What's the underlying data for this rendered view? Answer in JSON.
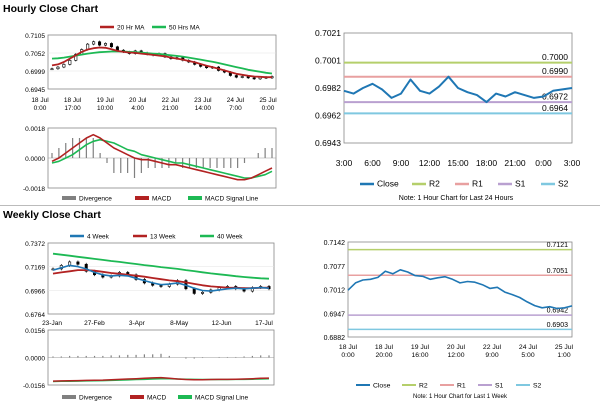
{
  "titles": {
    "hourly": "Hourly Close Chart",
    "weekly": "Weekly Close Chart"
  },
  "colors": {
    "candle": "#000000",
    "ma20": "#b22222",
    "ma50": "#1db954",
    "divergence": "#808080",
    "macd": "#b22222",
    "signal": "#1db954",
    "close": "#1f77b4",
    "r2": "#b5cf6b",
    "r1": "#e8a0a0",
    "s1": "#b9a0d0",
    "s2": "#7fc8e0",
    "w4": "#1f77b4",
    "w13": "#b22222",
    "w40": "#1db954"
  },
  "chart_data": [
    {
      "id": "hourly-price",
      "type": "line",
      "legend": [
        "20 Hr MA",
        "50 Hrs MA"
      ],
      "ylim": [
        0.6945,
        0.7105
      ],
      "yticks": [
        "0.7105",
        "0.7052",
        "0.6999",
        "0.6945"
      ],
      "xticks": [
        [
          "18 Jul",
          "0:00"
        ],
        [
          "18 Jul",
          "17:00"
        ],
        [
          "19 Jul",
          "10:00"
        ],
        [
          "20 Jul",
          "4:00"
        ],
        [
          "22 Jul",
          "21:00"
        ],
        [
          "23 Jul",
          "14:00"
        ],
        [
          "24 Jul",
          "7:00"
        ],
        [
          "25 Jul",
          "0:00"
        ]
      ],
      "close": [
        0.7005,
        0.701,
        0.7018,
        0.703,
        0.7048,
        0.7062,
        0.7078,
        0.7085,
        0.7075,
        0.708,
        0.707,
        0.706,
        0.7055,
        0.705,
        0.7058,
        0.7052,
        0.7048,
        0.7045,
        0.705,
        0.704,
        0.7035,
        0.7038,
        0.703,
        0.7025,
        0.7018,
        0.7012,
        0.7008,
        0.701,
        0.7,
        0.6995,
        0.6985,
        0.698,
        0.6982,
        0.6978,
        0.6975,
        0.698,
        0.6978,
        0.6982
      ],
      "ma20": [
        0.7015,
        0.7018,
        0.7025,
        0.7035,
        0.7045,
        0.7055,
        0.7062,
        0.7066,
        0.7068,
        0.7067,
        0.7063,
        0.7058,
        0.7055,
        0.7053,
        0.7052,
        0.705,
        0.7048,
        0.7046,
        0.7044,
        0.7042,
        0.7038,
        0.7035,
        0.7032,
        0.7028,
        0.7024,
        0.7019,
        0.7014,
        0.701,
        0.7005,
        0.7,
        0.6995,
        0.699,
        0.6987,
        0.6984,
        0.6982,
        0.6981,
        0.698,
        0.698
      ],
      "ma50": [
        0.7035,
        0.7036,
        0.7038,
        0.7041,
        0.7044,
        0.7047,
        0.705,
        0.7052,
        0.7054,
        0.7055,
        0.7056,
        0.7056,
        0.7056,
        0.7055,
        0.7054,
        0.7053,
        0.7051,
        0.705,
        0.7049,
        0.7047,
        0.7045,
        0.7043,
        0.7041,
        0.7038,
        0.7035,
        0.7032,
        0.7029,
        0.7026,
        0.7022,
        0.7018,
        0.7014,
        0.701,
        0.7006,
        0.7002,
        0.6999,
        0.6996,
        0.6993,
        0.6991
      ]
    },
    {
      "id": "hourly-macd",
      "type": "bar",
      "legend": [
        "Divergence",
        "MACD",
        "MACD Signal Line"
      ],
      "ylim": [
        -0.0018,
        0.0018
      ],
      "yticks": [
        "0.0018",
        "0.0000",
        "-0.0018"
      ],
      "macd": [
        -0.0002,
        0.0,
        0.0003,
        0.0006,
        0.0009,
        0.0012,
        0.0014,
        0.0012,
        0.0009,
        0.0006,
        0.0004,
        0.0002,
        0.0,
        -0.0001,
        -0.0001,
        -0.0002,
        -0.0003,
        -0.0004,
        -0.0004,
        -0.0005,
        -0.0006,
        -0.0007,
        -0.0008,
        -0.0009,
        -0.001,
        -0.0011,
        -0.0012,
        -0.0013,
        -0.0013,
        -0.0012,
        -0.001,
        -0.0008,
        -0.0006
      ],
      "signal": [
        -0.0003,
        -0.0002,
        0.0,
        0.0002,
        0.0005,
        0.0008,
        0.001,
        0.0011,
        0.001,
        0.0009,
        0.0007,
        0.0005,
        0.0004,
        0.0002,
        0.0001,
        0.0,
        -0.0001,
        -0.0002,
        -0.0003,
        -0.0003,
        -0.0004,
        -0.0005,
        -0.0006,
        -0.0007,
        -0.0008,
        -0.0009,
        -0.001,
        -0.0011,
        -0.0012,
        -0.0012,
        -0.0011,
        -0.001,
        -0.0008
      ]
    },
    {
      "id": "hourly-pivot",
      "type": "line",
      "ylim": [
        0.6943,
        0.7021
      ],
      "yticks": [
        "0.7021",
        "0.7001",
        "0.6982",
        "0.6962",
        "0.6943"
      ],
      "xticks": [
        "3:00",
        "6:00",
        "9:00",
        "12:00",
        "15:00",
        "18:00",
        "21:00",
        "0:00",
        "3:00"
      ],
      "close": [
        0.698,
        0.6978,
        0.6982,
        0.6985,
        0.6981,
        0.6975,
        0.6978,
        0.6988,
        0.698,
        0.6978,
        0.6983,
        0.699,
        0.6982,
        0.6979,
        0.6977,
        0.6972,
        0.6978,
        0.6976,
        0.6979,
        0.6977,
        0.6975,
        0.6976,
        0.698,
        0.6981,
        0.6982
      ],
      "levels": [
        {
          "name": "R2",
          "value": 0.7,
          "label": "0.7000"
        },
        {
          "name": "R1",
          "value": 0.699,
          "label": "0.6990"
        },
        {
          "name": "S1",
          "value": 0.6972,
          "label": "0.6972"
        },
        {
          "name": "S2",
          "value": 0.6964,
          "label": "0.6964"
        }
      ],
      "legend": [
        "Close",
        "R2",
        "R1",
        "S1",
        "S2"
      ],
      "note": "Note: 1 Hour Chart for Last 24 Hours"
    },
    {
      "id": "weekly-price",
      "type": "line",
      "legend": [
        "4 Week",
        "13 Week",
        "40 Week"
      ],
      "ylim": [
        0.6764,
        0.7372
      ],
      "yticks": [
        "0.7372",
        "0.7169",
        "0.6966",
        "0.6764"
      ],
      "xticks": [
        "23-Jan",
        "27-Feb",
        "3-Apr",
        "8-May",
        "12-Jun",
        "17-Jul"
      ],
      "close": [
        0.715,
        0.718,
        0.721,
        0.719,
        0.713,
        0.71,
        0.708,
        0.709,
        0.712,
        0.71,
        0.706,
        0.703,
        0.701,
        0.7,
        0.702,
        0.705,
        0.698,
        0.694,
        0.695,
        0.697,
        0.699,
        0.7,
        0.698,
        0.696,
        0.699,
        0.7,
        0.698
      ],
      "w4": [
        0.714,
        0.716,
        0.718,
        0.717,
        0.715,
        0.712,
        0.71,
        0.709,
        0.7095,
        0.709,
        0.707,
        0.705,
        0.703,
        0.7015,
        0.702,
        0.703,
        0.701,
        0.6985,
        0.6965,
        0.696,
        0.697,
        0.698,
        0.6985,
        0.698,
        0.6985,
        0.699,
        0.6985
      ],
      "w13": [
        0.711,
        0.712,
        0.713,
        0.714,
        0.714,
        0.7135,
        0.7125,
        0.7115,
        0.7108,
        0.71,
        0.7092,
        0.7083,
        0.7072,
        0.7062,
        0.7052,
        0.7045,
        0.7035,
        0.7022,
        0.701,
        0.7,
        0.6995,
        0.699,
        0.6988,
        0.6986,
        0.6986,
        0.6988,
        0.699
      ],
      "w40": [
        0.728,
        0.7272,
        0.7263,
        0.7254,
        0.7245,
        0.7236,
        0.7227,
        0.7218,
        0.721,
        0.7201,
        0.7192,
        0.7183,
        0.7175,
        0.7166,
        0.7158,
        0.715,
        0.714,
        0.7131,
        0.7121,
        0.7112,
        0.7104,
        0.7096,
        0.7088,
        0.7081,
        0.7075,
        0.707,
        0.7066
      ]
    },
    {
      "id": "weekly-macd",
      "type": "bar",
      "legend": [
        "Divergence",
        "MACD",
        "MACD Signal Line"
      ],
      "ylim": [
        -0.0156,
        0.0156
      ],
      "yticks": [
        "0.0156",
        "0.0000",
        "-0.0156"
      ],
      "macd": [
        -0.0134,
        -0.0133,
        -0.0132,
        -0.0131,
        -0.013,
        -0.0129,
        -0.0128,
        -0.0126,
        -0.0124,
        -0.0122,
        -0.012,
        -0.0118,
        -0.0116,
        -0.0114,
        -0.0118,
        -0.0122,
        -0.0125,
        -0.0126,
        -0.0126,
        -0.0125,
        -0.0124,
        -0.0124,
        -0.0123,
        -0.0122,
        -0.012,
        -0.0118,
        -0.0117
      ],
      "signal": [
        -0.0136,
        -0.0135,
        -0.0135,
        -0.0134,
        -0.0133,
        -0.0132,
        -0.0131,
        -0.013,
        -0.0128,
        -0.0127,
        -0.0125,
        -0.0124,
        -0.0122,
        -0.0121,
        -0.0121,
        -0.0122,
        -0.0123,
        -0.0124,
        -0.0125,
        -0.0125,
        -0.0125,
        -0.0125,
        -0.0124,
        -0.0124,
        -0.0123,
        -0.0122,
        -0.0121
      ]
    },
    {
      "id": "weekly-pivot",
      "type": "line",
      "ylim": [
        0.6882,
        0.7142
      ],
      "yticks": [
        "0.7142",
        "0.7077",
        "0.7012",
        "0.6947",
        "0.6882"
      ],
      "xticks": [
        [
          "18 Jul",
          "0:00"
        ],
        [
          "18 Jul",
          "20:00"
        ],
        [
          "19 Jul",
          "16:00"
        ],
        [
          "20 Jul",
          "12:00"
        ],
        [
          "22 Jul",
          "9:00"
        ],
        [
          "24 Jul",
          "5:00"
        ],
        [
          "25 Jul",
          "1:00"
        ]
      ],
      "close": [
        0.701,
        0.703,
        0.7038,
        0.704,
        0.7045,
        0.7062,
        0.7055,
        0.7066,
        0.706,
        0.705,
        0.7048,
        0.704,
        0.7044,
        0.7047,
        0.704,
        0.703,
        0.7034,
        0.7032,
        0.7025,
        0.7015,
        0.7018,
        0.7005,
        0.6998,
        0.699,
        0.6978,
        0.6968,
        0.6962,
        0.6965,
        0.696,
        0.6962,
        0.6967
      ],
      "levels": [
        {
          "name": "R2",
          "value": 0.7121,
          "label": "0.7121"
        },
        {
          "name": "R1",
          "value": 0.7051,
          "label": "0.7051"
        },
        {
          "name": "S1",
          "value": 0.6942,
          "label": "0.6942"
        },
        {
          "name": "S2",
          "value": 0.6903,
          "label": "0.6903"
        }
      ],
      "legend": [
        "Close",
        "R2",
        "R1",
        "S1",
        "S2"
      ],
      "note": "Note: 1 Hour Chart for Last 1 Week"
    }
  ]
}
